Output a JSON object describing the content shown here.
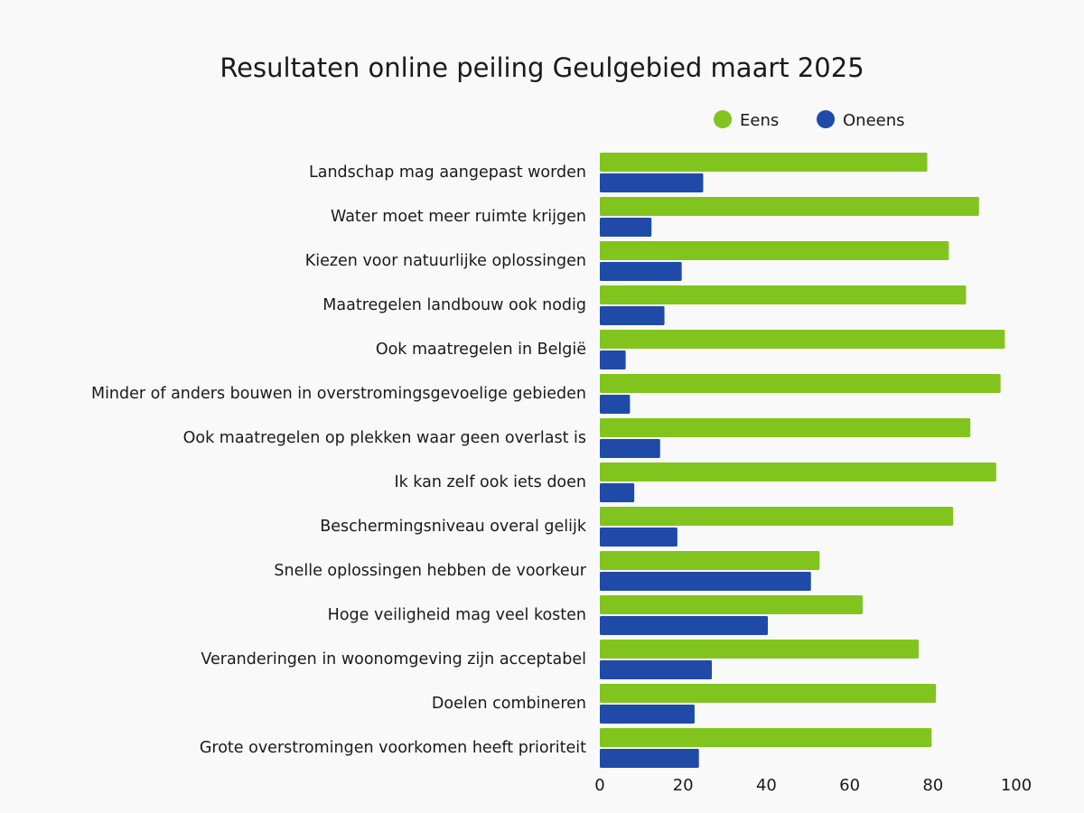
{
  "chart_data": {
    "type": "bar",
    "orientation": "horizontal",
    "title": "Resultaten online peiling Geulgebied maart 2025",
    "xlabel": "",
    "ylabel": "",
    "xlim": [
      0,
      100
    ],
    "x_ticks": [
      "0",
      "20",
      "40",
      "60",
      "80",
      "100"
    ],
    "grid": false,
    "legend_position": "top-right",
    "categories": [
      "Landschap mag aangepast worden",
      "Water moet meer ruimte krijgen",
      "Kiezen voor natuurlijke oplossingen",
      "Maatregelen landbouw ook nodig",
      "Ook maatregelen in België",
      "Minder of anders bouwen in overstromingsgevoelige gebieden",
      "Ook maatregelen op plekken waar geen overlast is",
      "Ik kan zelf ook iets doen",
      "Beschermingsniveau overal gelijk",
      "Snelle oplossingen hebben de voorkeur",
      "Hoge veiligheid mag veel kosten",
      "Veranderingen in woonomgeving zijn acceptabel",
      "Doelen combineren",
      "Grote overstromingen voorkomen heeft prioriteit"
    ],
    "series": [
      {
        "name": "Eens",
        "color": "#82c41e",
        "values": [
          76,
          88,
          81,
          85,
          94,
          93,
          86,
          92,
          82,
          51,
          61,
          74,
          78,
          77
        ]
      },
      {
        "name": "Oneens",
        "color": "#1f4aa8",
        "values": [
          24,
          12,
          19,
          15,
          6,
          7,
          14,
          8,
          18,
          49,
          39,
          26,
          22,
          23
        ]
      }
    ]
  },
  "background": "#f9f9f9"
}
